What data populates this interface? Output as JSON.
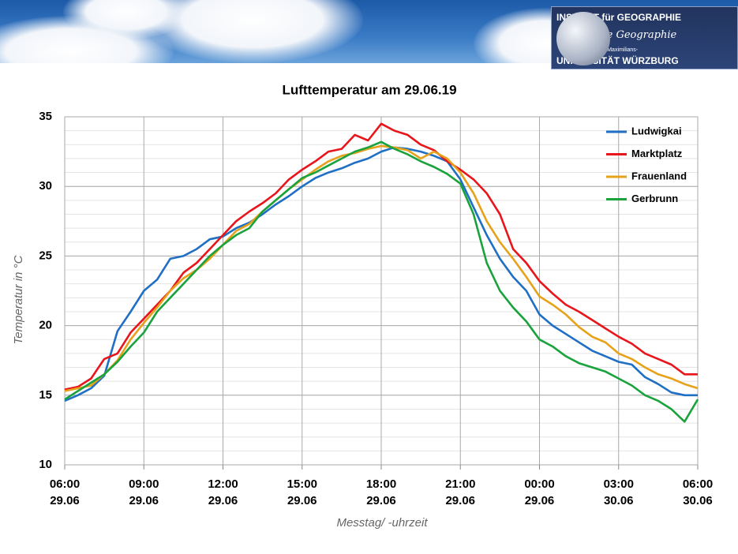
{
  "header": {
    "institute": "INSTITUT für GEOGRAPHIE",
    "department": "Physische Geographie",
    "university_line1": "Julius-Maximilians-",
    "university_line2": "UNIVERSITÄT WÜRZBURG"
  },
  "chart_data": {
    "type": "line",
    "title": "Lufttemperatur am 29.06.19",
    "x_label": "Messtag/ -uhrzeit",
    "y_label": "Temperatur in °C",
    "x": [
      0,
      0.5,
      1,
      1.5,
      2,
      2.5,
      3,
      3.5,
      4,
      4.5,
      5,
      5.5,
      6,
      6.5,
      7,
      7.5,
      8,
      8.5,
      9,
      9.5,
      10,
      10.5,
      11,
      11.5,
      12,
      12.5,
      13,
      13.5,
      14,
      14.5,
      15,
      15.5,
      16,
      16.5,
      17,
      17.5,
      18,
      18.5,
      19,
      19.5,
      20,
      20.5,
      21,
      21.5,
      22,
      22.5,
      23,
      23.5,
      24
    ],
    "xlim": [
      0,
      24
    ],
    "xticks": [
      {
        "value": 0,
        "label": "06:00",
        "date": "29.06"
      },
      {
        "value": 3,
        "label": "09:00",
        "date": "29.06"
      },
      {
        "value": 6,
        "label": "12:00",
        "date": "29.06"
      },
      {
        "value": 9,
        "label": "15:00",
        "date": "29.06"
      },
      {
        "value": 12,
        "label": "18:00",
        "date": "29.06"
      },
      {
        "value": 15,
        "label": "21:00",
        "date": "29.06"
      },
      {
        "value": 18,
        "label": "00:00",
        "date": "29.06"
      },
      {
        "value": 21,
        "label": "03:00",
        "date": "30.06"
      },
      {
        "value": 24,
        "label": "06:00",
        "date": "30.06"
      }
    ],
    "ylim": [
      10,
      35
    ],
    "yticks": [
      10,
      15,
      20,
      25,
      30,
      35
    ],
    "grid": true,
    "ygrid_minor": 1,
    "legend": "upper right",
    "series": [
      {
        "name": "Ludwigkai",
        "color": "#1f6fc5",
        "values": [
          14.6,
          15.0,
          15.5,
          16.4,
          19.6,
          21.0,
          22.5,
          23.3,
          24.8,
          25.0,
          25.5,
          26.2,
          26.4,
          27.0,
          27.4,
          28.0,
          28.7,
          29.3,
          30.0,
          30.6,
          31.0,
          31.3,
          31.7,
          32.0,
          32.5,
          32.8,
          32.7,
          32.5,
          32.2,
          31.8,
          30.5,
          28.5,
          26.5,
          24.8,
          23.5,
          22.5,
          20.8,
          20.0,
          19.4,
          18.8,
          18.2,
          17.8,
          17.4,
          17.2,
          16.3,
          15.8,
          15.2,
          15.0,
          15.0
        ]
      },
      {
        "name": "Marktplatz",
        "color": "#e8151b",
        "values": [
          15.4,
          15.6,
          16.2,
          17.6,
          18.0,
          19.5,
          20.5,
          21.5,
          22.5,
          23.8,
          24.5,
          25.5,
          26.5,
          27.5,
          28.2,
          28.8,
          29.5,
          30.5,
          31.2,
          31.8,
          32.5,
          32.7,
          33.7,
          33.3,
          34.5,
          34.0,
          33.7,
          33.0,
          32.6,
          31.8,
          31.2,
          30.5,
          29.5,
          28.0,
          25.5,
          24.5,
          23.2,
          22.3,
          21.5,
          21.0,
          20.4,
          19.8,
          19.2,
          18.7,
          18.0,
          17.6,
          17.2,
          16.5,
          16.5
        ]
      },
      {
        "name": "Frauenland",
        "color": "#e6a21a",
        "values": [
          15.3,
          15.5,
          15.7,
          16.5,
          17.5,
          19.0,
          20.2,
          21.3,
          22.5,
          23.4,
          24.0,
          24.8,
          25.8,
          26.8,
          27.3,
          28.2,
          29.0,
          29.8,
          30.5,
          31.2,
          31.8,
          32.2,
          32.4,
          32.7,
          32.9,
          32.8,
          32.6,
          32.0,
          32.5,
          32.0,
          31.0,
          29.5,
          27.5,
          26.0,
          24.8,
          23.5,
          22.1,
          21.5,
          20.8,
          19.9,
          19.2,
          18.8,
          18.0,
          17.6,
          17.0,
          16.5,
          16.2,
          15.8,
          15.5
        ]
      },
      {
        "name": "Gerbrunn",
        "color": "#1aa33c",
        "values": [
          14.7,
          15.3,
          15.9,
          16.5,
          17.4,
          18.5,
          19.5,
          21.0,
          22.0,
          23.0,
          24.0,
          25.0,
          25.8,
          26.5,
          27.0,
          28.2,
          29.0,
          29.8,
          30.6,
          31.0,
          31.5,
          32.0,
          32.5,
          32.8,
          33.2,
          32.7,
          32.3,
          31.8,
          31.4,
          30.9,
          30.2,
          28.0,
          24.5,
          22.5,
          21.3,
          20.3,
          19.0,
          18.5,
          17.8,
          17.3,
          17.0,
          16.7,
          16.2,
          15.7,
          15.0,
          14.6,
          14.0,
          13.1,
          14.7
        ]
      }
    ]
  }
}
